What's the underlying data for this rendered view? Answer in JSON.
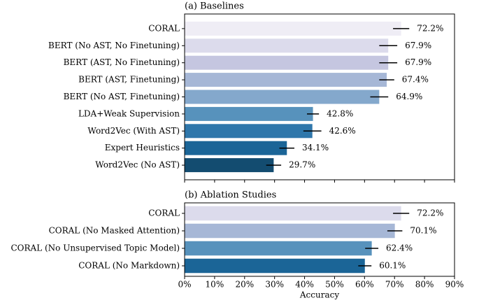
{
  "chart_data": [
    {
      "type": "barh",
      "title": "(a) Baselines",
      "categories": [
        "CORAL",
        "BERT (No AST, No Finetuning)",
        "BERT (AST, No Finetuning)",
        "BERT (AST, Finetuning)",
        "BERT (No AST, Finetuning)",
        "LDA+Weak Supervision",
        "Word2Vec (With AST)",
        "Expert Heuristics",
        "Word2Vec (No AST)"
      ],
      "values": [
        72.2,
        67.9,
        67.9,
        67.4,
        64.9,
        42.8,
        42.6,
        34.1,
        29.7
      ],
      "value_labels": [
        "72.2%",
        "67.9%",
        "67.9%",
        "67.4%",
        "64.9%",
        "42.8%",
        "42.6%",
        "34.1%",
        "29.7%"
      ],
      "errors": [
        2.7,
        3,
        3,
        2.5,
        3,
        2,
        3,
        2.5,
        2.5
      ],
      "colors": [
        "#efedf5",
        "#dcdbec",
        "#c5c6e0",
        "#a6b7d6",
        "#84a8cc",
        "#5792bc",
        "#2f77ab",
        "#1b6597",
        "#134c70"
      ],
      "xlim": [
        0,
        90
      ],
      "xticks": [
        0,
        10,
        20,
        30,
        40,
        50,
        60,
        70,
        80,
        90
      ]
    },
    {
      "type": "barh",
      "title": "(b) Ablation Studies",
      "categories": [
        "CORAL",
        "CORAL (No Masked Attention)",
        "CORAL (No Unsupervised Topic Model)",
        "CORAL (No Markdown)"
      ],
      "values": [
        72.2,
        70.1,
        62.4,
        60.1
      ],
      "value_labels": [
        "72.2%",
        "70.1%",
        "62.4%",
        "60.1%"
      ],
      "errors": [
        2.7,
        2.5,
        2.2,
        2.2
      ],
      "colors": [
        "#dcdbec",
        "#a6b7d6",
        "#5792bc",
        "#1b6597"
      ],
      "xlim": [
        0,
        90
      ],
      "xticks": [
        {
          "value": 0,
          "label": "0%"
        },
        {
          "value": 10,
          "label": "10%"
        },
        {
          "value": 20,
          "label": "20%"
        },
        {
          "value": 30,
          "label": "30%"
        },
        {
          "value": 40,
          "label": "40%"
        },
        {
          "value": 50,
          "label": "50%"
        },
        {
          "value": 60,
          "label": "60%"
        },
        {
          "value": 70,
          "label": "70%"
        },
        {
          "value": 80,
          "label": "80%"
        },
        {
          "value": 90,
          "label": "90%"
        }
      ],
      "xlabel": "Accuracy"
    }
  ]
}
